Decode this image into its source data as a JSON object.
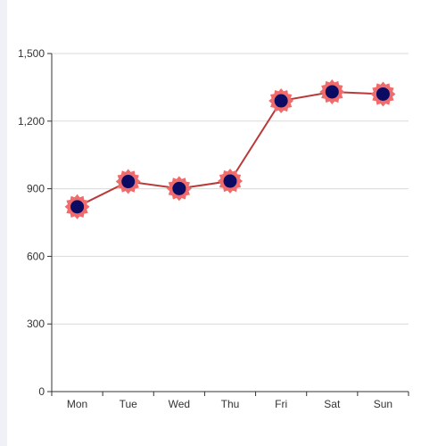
{
  "chart_data": {
    "type": "line",
    "categories": [
      "Mon",
      "Tue",
      "Wed",
      "Thu",
      "Fri",
      "Sat",
      "Sun"
    ],
    "series": [
      {
        "values": [
          820,
          932,
          901,
          934,
          1290,
          1330,
          1320
        ]
      }
    ],
    "ylim": [
      0,
      1500
    ],
    "yticks": [
      0,
      300,
      600,
      900,
      1200,
      1500
    ],
    "ytick_labels": [
      "0",
      "300",
      "600",
      "900",
      "1,200",
      "1,500"
    ],
    "grid": true,
    "colors": {
      "line": "#b83a3a",
      "marker_outer": "#f06b6b",
      "marker_inner": "#0b0b63",
      "grid": "#d9d9d9",
      "axis": "#333333"
    },
    "marker": "star-burst"
  }
}
